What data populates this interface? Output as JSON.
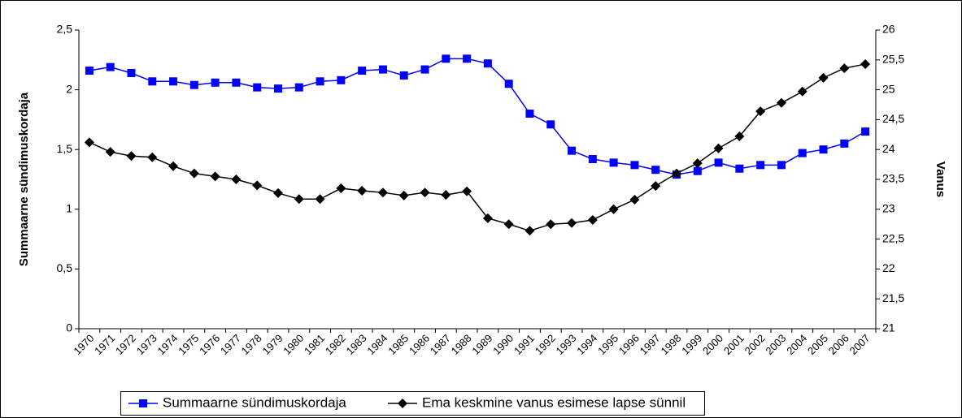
{
  "chart_data": {
    "type": "line",
    "ylabel": "Summaarne sündimuskordaja",
    "y2label": "Vanus",
    "categories": [
      "1970",
      "1971",
      "1972",
      "1973",
      "1974",
      "1975",
      "1976",
      "1977",
      "1978",
      "1979",
      "1980",
      "1981",
      "1982",
      "1983",
      "1984",
      "1985",
      "1986",
      "1987",
      "1988",
      "1989",
      "1990",
      "1991",
      "1992",
      "1993",
      "1994",
      "1995",
      "1996",
      "1997",
      "1998",
      "1999",
      "2000",
      "2001",
      "2002",
      "2003",
      "2004",
      "2005",
      "2006",
      "2007"
    ],
    "series": [
      {
        "name": "Summaarne sündimuskordaja",
        "color": "#0000ff",
        "marker": "square",
        "values": [
          2.16,
          2.19,
          2.14,
          2.07,
          2.07,
          2.04,
          2.06,
          2.06,
          2.02,
          2.01,
          2.02,
          2.07,
          2.08,
          2.16,
          2.17,
          2.12,
          2.17,
          2.26,
          2.26,
          2.22,
          2.05,
          1.8,
          1.71,
          1.49,
          1.42,
          1.39,
          1.37,
          1.33,
          1.29,
          1.32,
          1.39,
          1.34,
          1.37,
          1.37,
          1.47,
          1.5,
          1.55,
          1.65
        ]
      },
      {
        "name": "Ema keskmine vanus esimese lapse sünnil",
        "color": "#000000",
        "marker": "diamond",
        "axis": "y2",
        "values": [
          24.12,
          23.96,
          23.89,
          23.87,
          23.72,
          23.6,
          23.55,
          23.5,
          23.4,
          23.27,
          23.17,
          23.17,
          23.35,
          23.31,
          23.28,
          23.23,
          23.28,
          23.24,
          23.3,
          22.85,
          22.75,
          22.64,
          22.75,
          22.77,
          22.82,
          23.0,
          23.16,
          23.39,
          23.6,
          23.77,
          24.02,
          24.22,
          24.64,
          24.78,
          24.97,
          25.2,
          25.36,
          25.43
        ]
      }
    ],
    "ylim": [
      0,
      2.5
    ],
    "yticks": [
      0,
      {
        "value": 0.5,
        "label": "0,5"
      },
      1,
      {
        "value": 1.5,
        "label": "1,5"
      },
      2,
      {
        "value": 2.5,
        "label": "2,5"
      }
    ],
    "y2lim": [
      21,
      26
    ],
    "y2ticks": [
      21,
      {
        "value": 21.5,
        "label": "21,5"
      },
      22,
      {
        "value": 22.5,
        "label": "22,5"
      },
      23,
      {
        "value": 23.5,
        "label": "23,5"
      },
      24,
      {
        "value": 24.5,
        "label": "24,5"
      },
      25,
      {
        "value": 25.5,
        "label": "25,5"
      },
      26
    ],
    "legend": "bottom"
  }
}
